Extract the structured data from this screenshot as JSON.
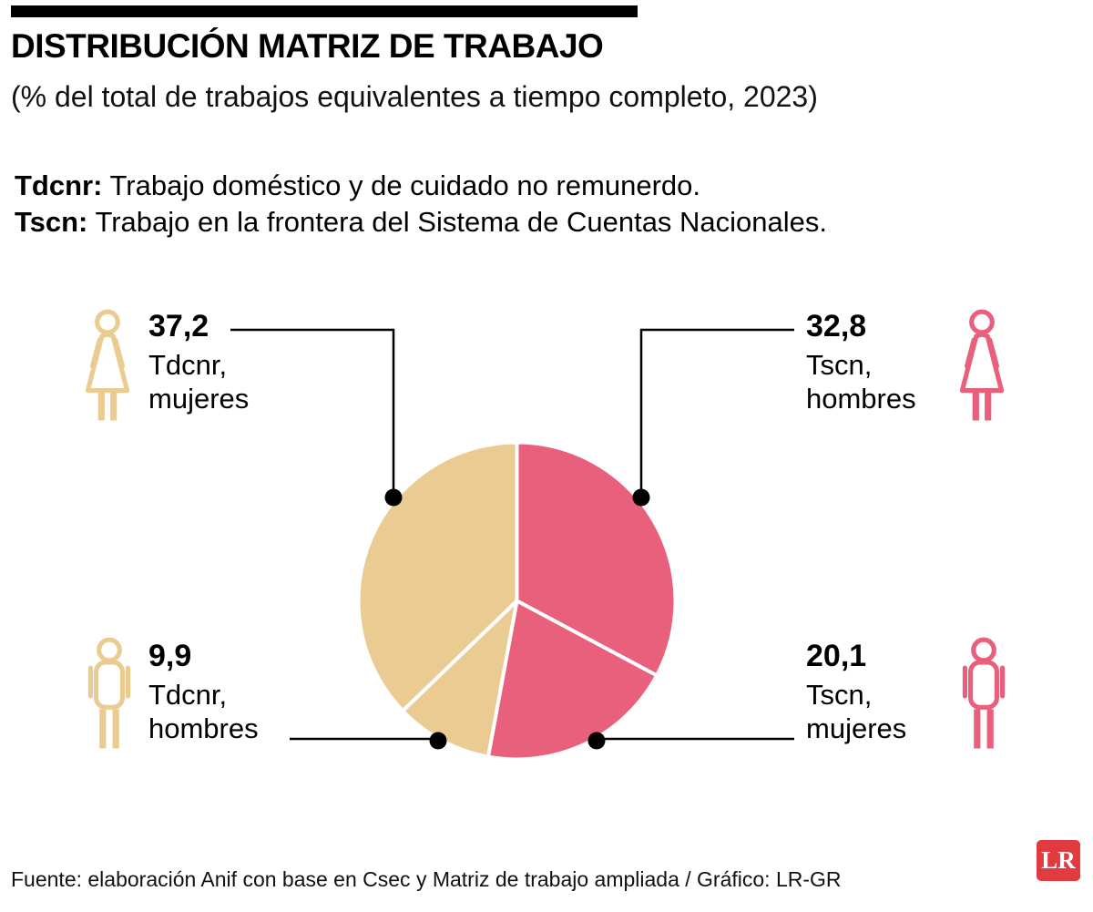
{
  "header": {
    "title": "DISTRIBUCIÓN MATRIZ DE TRABAJO",
    "subtitle": "(% del total de trabajos equivalentes a tiempo completo, 2023)"
  },
  "definitions": [
    {
      "term": "Tdcnr:",
      "text": " Trabajo doméstico y de cuidado no remunerdo."
    },
    {
      "term": "Tscn:",
      "text": " Trabajo en la frontera del Sistema de Cuentas Nacionales."
    }
  ],
  "chart_data": {
    "type": "pie",
    "title": "Distribución matriz de trabajo",
    "unit": "% del total de trabajos equivalentes a tiempo completo",
    "year": "2023",
    "start_angle_deg": 0,
    "clockwise": true,
    "legend_position": "callouts",
    "slices": [
      {
        "label": "Tscn, hombres",
        "value": 32.8,
        "display_value": "32,8",
        "color": "#E8607C"
      },
      {
        "label": "Tscn, mujeres",
        "value": 20.1,
        "display_value": "20,1",
        "color": "#E8607C"
      },
      {
        "label": "Tdcnr, hombres",
        "value": 9.9,
        "display_value": "9,9",
        "color": "#EACB92"
      },
      {
        "label": "Tdcnr, mujeres",
        "value": 37.2,
        "display_value": "37,2",
        "color": "#EACB92"
      }
    ]
  },
  "callouts": {
    "top_left": {
      "value": "37,2",
      "line1": "Tdcnr,",
      "line2": "mujeres",
      "icon": "woman-icon",
      "color": "#EACB92"
    },
    "top_right": {
      "value": "32,8",
      "line1": "Tscn,",
      "line2": "hombres",
      "icon": "woman-icon",
      "color": "#E8607C"
    },
    "bottom_left": {
      "value": "9,9",
      "line1": "Tdcnr,",
      "line2": "hombres",
      "icon": "man-icon",
      "color": "#EACB92"
    },
    "bottom_right": {
      "value": "20,1",
      "line1": "Tscn,",
      "line2": "mujeres",
      "icon": "man-icon",
      "color": "#E8607C"
    }
  },
  "footer": {
    "source": "Fuente: elaboración Anif con base en Csec y Matriz de trabajo ampliada / Gráfico: LR-GR",
    "logo": "LR"
  }
}
